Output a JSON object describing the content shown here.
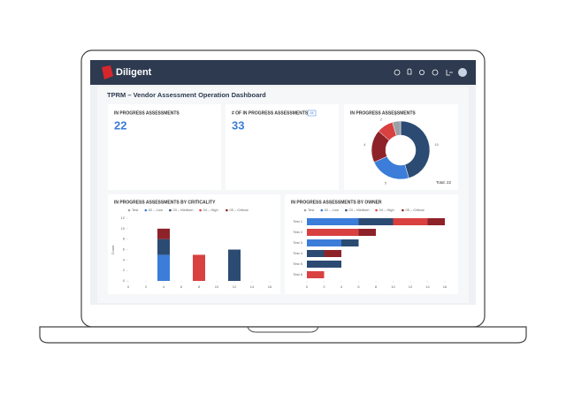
{
  "app": {
    "brand": "Diligent"
  },
  "dashboard": {
    "title": "TPRM – Vendor Assessment Operation Dashboard"
  },
  "cards": [
    {
      "title": "IN PROGRESS ASSESSMENTS",
      "value": 22
    },
    {
      "title": "# OF IN PROGRESS ASSESSMENTS",
      "badge": "All",
      "value": 33
    }
  ],
  "chart_data": [
    {
      "type": "donut",
      "title": "IN PROGRESS ASSESSMENTS",
      "values": [
        10,
        5,
        4,
        2,
        1
      ],
      "colors": [
        "#2c4b73",
        "#3b7dd8",
        "#8e2229",
        "#d94040",
        "#9aa0a6"
      ],
      "total_label": "Total: 22"
    },
    {
      "type": "stacked_bar",
      "title": "IN PROGRESS ASSESSMENTS BY CRITICALITY",
      "x": [
        4,
        8,
        12
      ],
      "series": [
        {
          "name": "Test",
          "color": "#9aa0a6",
          "values": [
            0,
            0,
            0
          ]
        },
        {
          "name": "02 – Low",
          "color": "#3b7dd8",
          "values": [
            5,
            0,
            0
          ]
        },
        {
          "name": "03 – Medium",
          "color": "#2c4b73",
          "values": [
            3,
            0,
            6
          ]
        },
        {
          "name": "04 – High",
          "color": "#d94040",
          "values": [
            0,
            5,
            0
          ]
        },
        {
          "name": "05 – Critical",
          "color": "#8e2229",
          "values": [
            2,
            0,
            0
          ]
        }
      ],
      "xlim": [
        0,
        16
      ],
      "xticks": [
        0,
        2,
        4,
        6,
        8,
        10,
        12,
        14,
        16
      ],
      "ylim": [
        0,
        12
      ],
      "yticks": [
        0,
        2,
        4,
        6,
        8,
        10,
        12
      ],
      "ylabel": "Count"
    },
    {
      "type": "stacked_barh",
      "title": "IN PROGRESS ASSESSMENTS BY OWNER",
      "categories": [
        "Test 1",
        "Test 2",
        "Test 3",
        "Test 4",
        "Test 5",
        "Test 6"
      ],
      "series": [
        {
          "name": "Test",
          "color": "#9aa0a6",
          "values": [
            0,
            0,
            0,
            0,
            0,
            0
          ]
        },
        {
          "name": "02 – Low",
          "color": "#3b7dd8",
          "values": [
            6,
            0,
            4,
            0,
            0,
            0
          ]
        },
        {
          "name": "03 – Medium",
          "color": "#2c4b73",
          "values": [
            4,
            0,
            2,
            2,
            4,
            0
          ]
        },
        {
          "name": "04 – High",
          "color": "#d94040",
          "values": [
            4,
            6,
            0,
            0,
            0,
            2
          ]
        },
        {
          "name": "05 – Critical",
          "color": "#8e2229",
          "values": [
            2,
            2,
            0,
            2,
            0,
            0
          ]
        }
      ],
      "xlim": [
        0,
        16
      ],
      "xticks": [
        0,
        2,
        4,
        6,
        8,
        10,
        12,
        14,
        16
      ]
    }
  ]
}
